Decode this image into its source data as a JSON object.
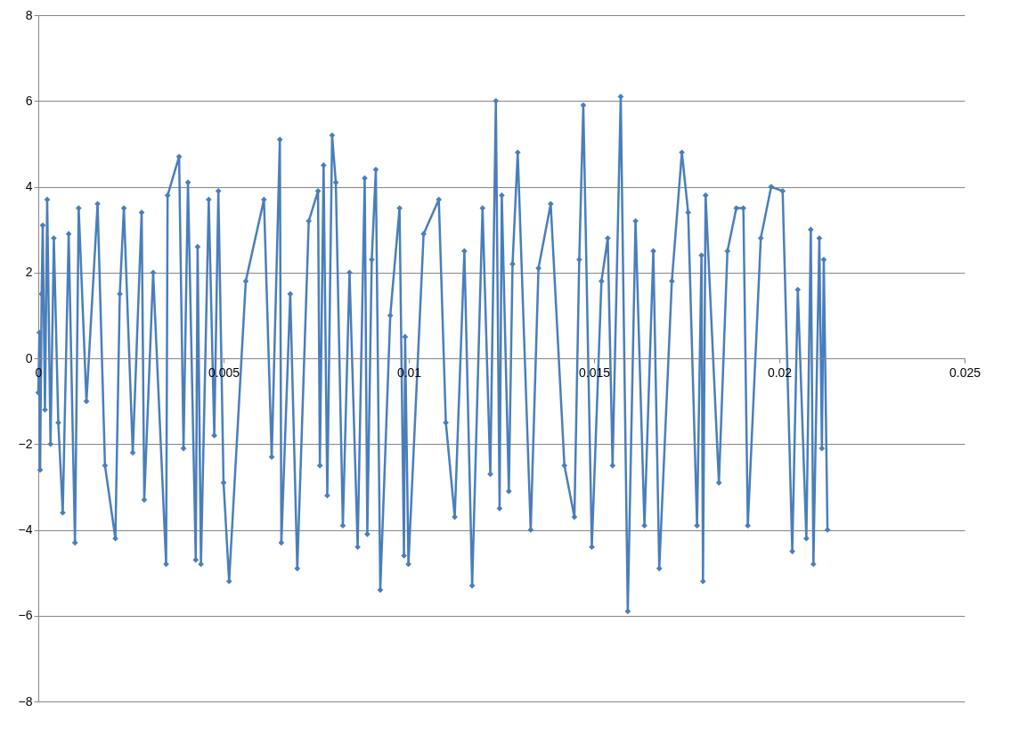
{
  "chart_data": {
    "type": "line",
    "x": [
      0,
      3e-05,
      5e-05,
      9e-05,
      0.00012,
      0.00018,
      0.00024,
      0.00033,
      0.00042,
      0.00054,
      0.00066,
      0.00082,
      0.00099,
      0.00109,
      0.0013,
      0.0016,
      0.0018,
      0.00208,
      0.0022,
      0.00231,
      0.00255,
      0.00279,
      0.00286,
      0.0031,
      0.00345,
      0.00349,
      0.0038,
      0.00392,
      0.00404,
      0.00425,
      0.0043,
      0.00439,
      0.0046,
      0.00475,
      0.00486,
      0.005,
      0.00515,
      0.0056,
      0.00609,
      0.0063,
      0.00652,
      0.00656,
      0.0068,
      0.00699,
      0.0073,
      0.00755,
      0.0076,
      0.0077,
      0.0078,
      0.00793,
      0.00803,
      0.00822,
      0.0084,
      0.00862,
      0.00881,
      0.00888,
      0.009,
      0.00911,
      0.00923,
      0.0095,
      0.00975,
      0.00987,
      0.0099,
      0.00999,
      0.0104,
      0.01081,
      0.011,
      0.01124,
      0.0115,
      0.01171,
      0.01199,
      0.0122,
      0.01235,
      0.01245,
      0.01251,
      0.0127,
      0.0128,
      0.01294,
      0.01329,
      0.0135,
      0.01383,
      0.0142,
      0.01447,
      0.0146,
      0.01471,
      0.01494,
      0.0152,
      0.01537,
      0.0155,
      0.01572,
      0.01591,
      0.01612,
      0.01636,
      0.0166,
      0.01676,
      0.0171,
      0.01737,
      0.01754,
      0.01778,
      0.0179,
      0.01794,
      0.01801,
      0.01837,
      0.0186,
      0.01884,
      0.01903,
      0.01915,
      0.0195,
      0.01978,
      0.02009,
      0.02035,
      0.0205,
      0.02073,
      0.02085,
      0.02092,
      0.02108,
      0.02115,
      0.0212,
      0.0213
    ],
    "values": [
      -0.8,
      0.6,
      -2.6,
      1.5,
      3.1,
      -1.2,
      3.7,
      -2,
      2.8,
      -1.5,
      -3.6,
      2.9,
      -4.3,
      3.5,
      -1,
      3.6,
      -2.5,
      -4.2,
      1.5,
      3.5,
      -2.2,
      3.4,
      -3.3,
      2,
      -4.8,
      3.8,
      4.7,
      -2.1,
      4.1,
      -4.7,
      2.6,
      -4.8,
      3.7,
      -1.8,
      3.9,
      -2.9,
      -5.2,
      1.8,
      3.7,
      -2.3,
      5.1,
      -4.3,
      1.5,
      -4.9,
      3.2,
      3.9,
      -2.5,
      4.5,
      -3.2,
      5.2,
      4.1,
      -3.9,
      2,
      -4.4,
      4.2,
      -4.1,
      2.3,
      4.4,
      -5.4,
      1,
      3.5,
      -4.6,
      0.5,
      -4.8,
      2.9,
      3.7,
      -1.5,
      -3.7,
      2.5,
      -5.3,
      3.5,
      -2.7,
      6,
      -3.5,
      3.8,
      -3.1,
      2.2,
      4.8,
      -4,
      2.1,
      3.6,
      -2.5,
      -3.7,
      2.3,
      5.9,
      -4.4,
      1.8,
      2.8,
      -2.5,
      6.1,
      -5.9,
      3.2,
      -3.9,
      2.5,
      -4.9,
      1.8,
      4.8,
      3.4,
      -3.9,
      2.4,
      -5.2,
      3.8,
      -2.9,
      2.5,
      3.5,
      3.5,
      -3.9,
      2.8,
      4,
      3.9,
      -4.5,
      1.6,
      -4.2,
      3,
      -4.8,
      2.8,
      -2.1,
      2.3,
      -4
    ],
    "color": "#4a7ebb",
    "marker": "diamond",
    "line_style": "solid",
    "grid": "y",
    "xlim": [
      0,
      0.025
    ],
    "xticks": [
      0,
      0.005,
      0.01,
      0.015,
      0.02,
      0.025
    ],
    "ylim": [
      -8,
      8
    ],
    "yticks": [
      -8,
      -6,
      -4,
      -2,
      0,
      2,
      4,
      6,
      8
    ]
  }
}
